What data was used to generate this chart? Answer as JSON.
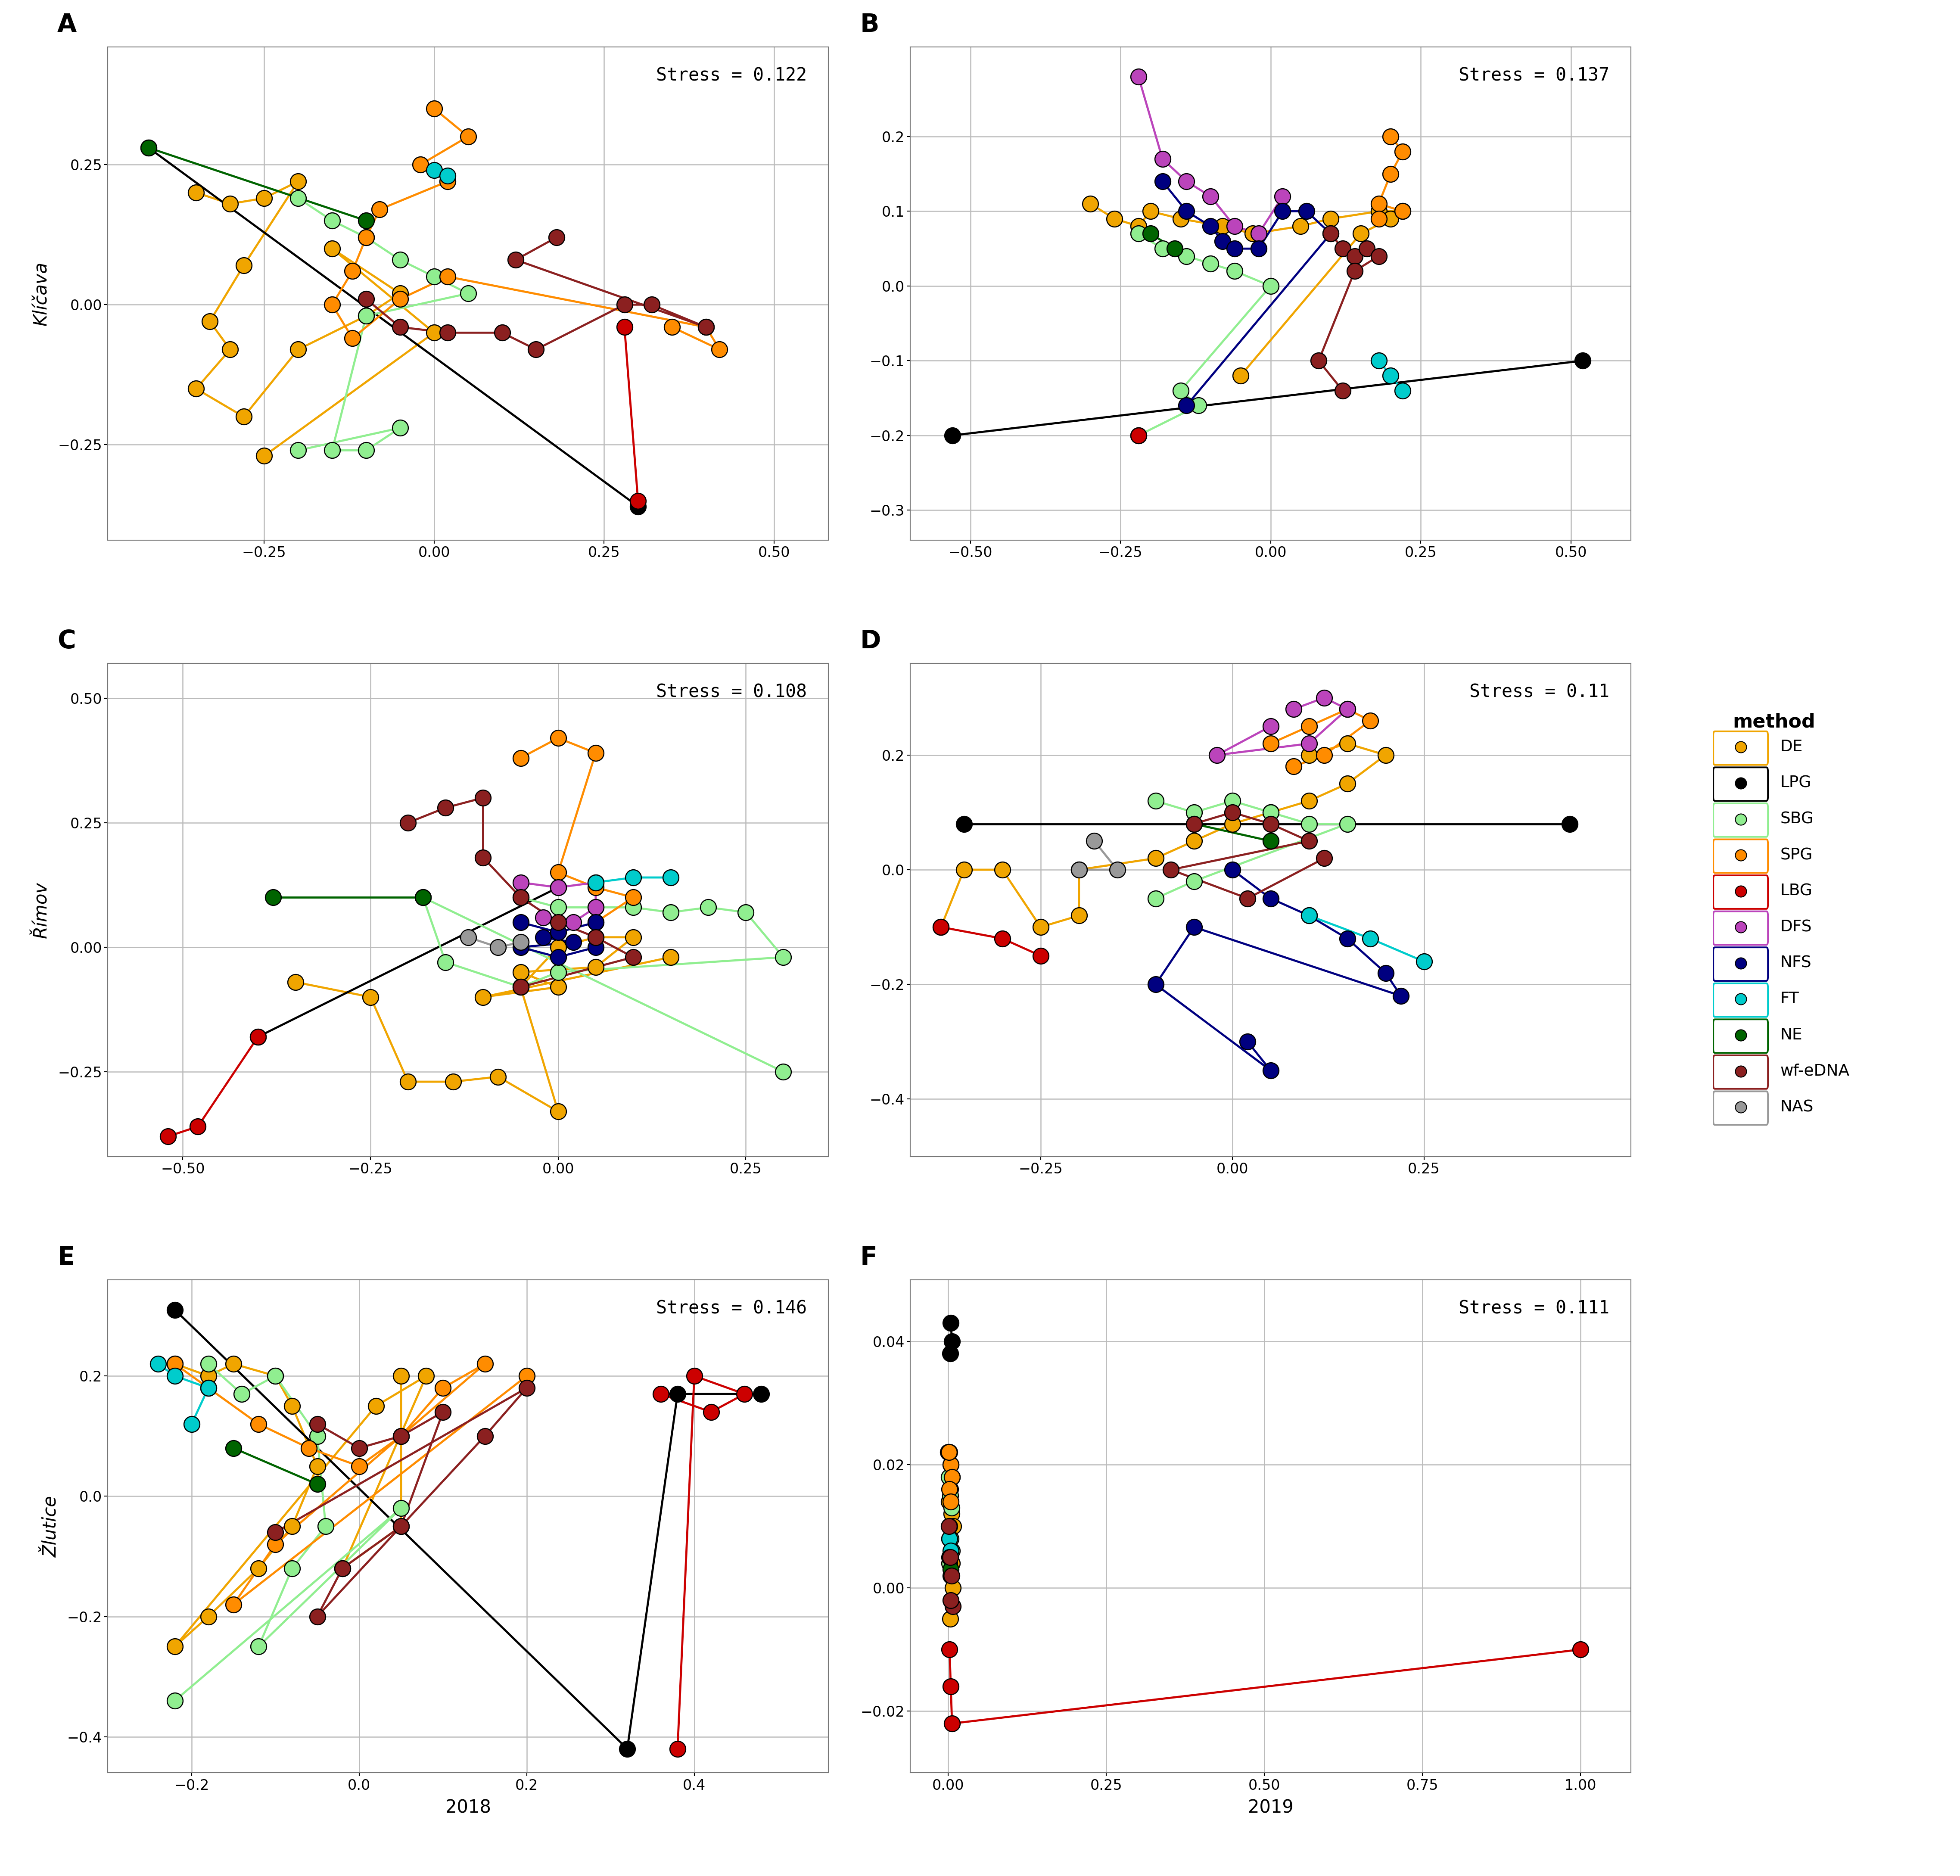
{
  "panels": [
    {
      "label": "A",
      "stress": "Stress = 0.122",
      "ylabel": "Klíčava",
      "xlabel": "",
      "show_xlabel": false,
      "xlim": [
        -0.48,
        0.58
      ],
      "ylim": [
        -0.42,
        0.46
      ],
      "xticks": [
        -0.25,
        0.0,
        0.25,
        0.5
      ],
      "yticks": [
        -0.25,
        0.0,
        0.25
      ]
    },
    {
      "label": "B",
      "stress": "Stress = 0.137",
      "ylabel": "",
      "xlabel": "",
      "show_xlabel": false,
      "xlim": [
        -0.6,
        0.6
      ],
      "ylim": [
        -0.34,
        0.32
      ],
      "xticks": [
        -0.5,
        -0.25,
        0.0,
        0.25,
        0.5
      ],
      "yticks": [
        -0.3,
        -0.2,
        -0.1,
        0.0,
        0.1,
        0.2
      ]
    },
    {
      "label": "C",
      "stress": "Stress = 0.108",
      "ylabel": "Římov",
      "xlabel": "",
      "show_xlabel": false,
      "xlim": [
        -0.6,
        0.36
      ],
      "ylim": [
        -0.42,
        0.57
      ],
      "xticks": [
        -0.5,
        -0.25,
        0.0,
        0.25
      ],
      "yticks": [
        -0.25,
        0.0,
        0.25,
        0.5
      ]
    },
    {
      "label": "D",
      "stress": "Stress = 0.11",
      "ylabel": "",
      "xlabel": "",
      "show_xlabel": false,
      "xlim": [
        -0.42,
        0.52
      ],
      "ylim": [
        -0.5,
        0.36
      ],
      "xticks": [
        -0.25,
        0.0,
        0.25
      ],
      "yticks": [
        -0.4,
        -0.2,
        0.0,
        0.2
      ]
    },
    {
      "label": "E",
      "stress": "Stress = 0.146",
      "ylabel": "Žlutice",
      "xlabel": "2018",
      "show_xlabel": true,
      "xlim": [
        -0.3,
        0.56
      ],
      "ylim": [
        -0.46,
        0.36
      ],
      "xticks": [
        -0.2,
        0.0,
        0.2,
        0.4
      ],
      "yticks": [
        -0.4,
        -0.2,
        0.0,
        0.2
      ]
    },
    {
      "label": "F",
      "stress": "Stress = 0.111",
      "ylabel": "",
      "xlabel": "2019",
      "show_xlabel": true,
      "xlim": [
        -0.06,
        1.08
      ],
      "ylim": [
        -0.03,
        0.05
      ],
      "xticks": [
        0.0,
        0.25,
        0.5,
        0.75,
        1.0
      ],
      "yticks": [
        -0.02,
        0.0,
        0.02,
        0.04
      ]
    }
  ],
  "methods": [
    "DE",
    "LPG",
    "SBG",
    "SPG",
    "LBG",
    "DFS",
    "NFS",
    "FT",
    "NE",
    "wf-eDNA",
    "NAS"
  ],
  "method_colors": {
    "DE": "#F0A500",
    "LPG": "#000000",
    "SBG": "#90EE90",
    "SPG": "#FF8C00",
    "LBG": "#CC0000",
    "DFS": "#BB44BB",
    "NFS": "#000080",
    "FT": "#00CCCC",
    "NE": "#006400",
    "wf-eDNA": "#8B2020",
    "NAS": "#999999"
  },
  "hull_colors": {
    "DE": "#F0A500",
    "LPG": "#000000",
    "SBG": "#90EE90",
    "SPG": "#FF8C00",
    "LBG": "#CC0000",
    "DFS": "#BB44BB",
    "NFS": "#000080",
    "FT": "#00CCCC",
    "NE": "#006400",
    "wf-eDNA": "#8B2020",
    "NAS": "#999999"
  }
}
